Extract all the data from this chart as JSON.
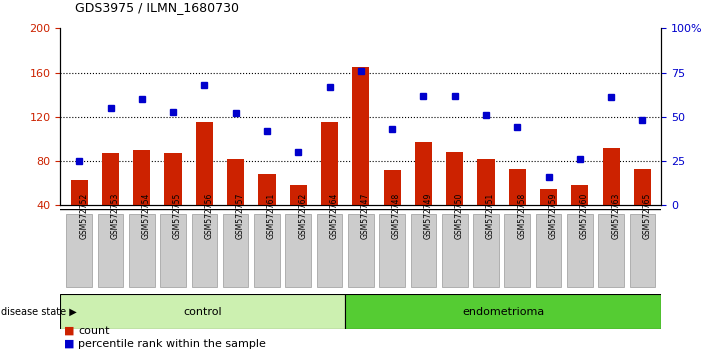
{
  "title": "GDS3975 / ILMN_1680730",
  "samples": [
    "GSM572752",
    "GSM572753",
    "GSM572754",
    "GSM572755",
    "GSM572756",
    "GSM572757",
    "GSM572761",
    "GSM572762",
    "GSM572764",
    "GSM572747",
    "GSM572748",
    "GSM572749",
    "GSM572750",
    "GSM572751",
    "GSM572758",
    "GSM572759",
    "GSM572760",
    "GSM572763",
    "GSM572765"
  ],
  "bar_values": [
    63,
    87,
    90,
    87,
    115,
    82,
    68,
    58,
    115,
    165,
    72,
    97,
    88,
    82,
    73,
    55,
    58,
    92,
    73
  ],
  "dot_values": [
    25,
    55,
    60,
    53,
    68,
    52,
    42,
    30,
    67,
    76,
    43,
    62,
    62,
    51,
    44,
    16,
    26,
    61,
    48
  ],
  "control_count": 9,
  "endometrioma_count": 10,
  "bar_color": "#cc2200",
  "dot_color": "#0000cc",
  "control_bg": "#ccf0b0",
  "endometrioma_bg": "#55cc33",
  "sample_bg": "#cccccc",
  "ylim_left": [
    40,
    200
  ],
  "ylim_right": [
    0,
    100
  ],
  "yticks_left": [
    40,
    80,
    120,
    160,
    200
  ],
  "yticks_right": [
    0,
    25,
    50,
    75,
    100
  ],
  "grid_values": [
    80,
    120,
    160
  ],
  "legend_count_label": "count",
  "legend_pct_label": "percentile rank within the sample",
  "disease_state_label": "disease state",
  "control_label": "control",
  "endometrioma_label": "endometrioma"
}
